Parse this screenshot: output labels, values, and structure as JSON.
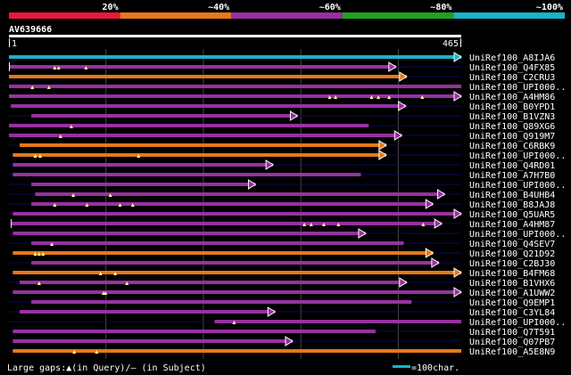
{
  "chart_data": {
    "type": "sequence-alignment-overview",
    "query_id": "AV639666",
    "query_start": "1",
    "query_end": "465",
    "query_length": 465,
    "identity_legend": [
      {
        "label": "20%",
        "color": "#e6193c"
      },
      {
        "label": "~40%",
        "color": "#e67819"
      },
      {
        "label": "~60%",
        "color": "#9632a0"
      },
      {
        "label": "~80%",
        "color": "#23a023"
      },
      {
        "label": "~100%",
        "color": "#19b4c8"
      }
    ],
    "footer_gap_text": "Large gaps:▲(in Query)/– (in Subject)",
    "scale_text": "=100char.",
    "scale_chars": 100,
    "hits": [
      {
        "label": "UniRef100_A8IJA6",
        "color": "#19b4c8",
        "start": 1,
        "end": 465,
        "arrow": true,
        "gaps_q": [],
        "qstart_marker": 0
      },
      {
        "label": "UniRef100_Q4FX85",
        "color": "#9632a0",
        "start": 1,
        "end": 398,
        "arrow": true,
        "gaps_q": [
          48,
          52,
          80
        ],
        "qstart_marker": 1
      },
      {
        "label": "UniRef100_C2CRU3",
        "color": "#e67819",
        "start": 1,
        "end": 409,
        "arrow": true,
        "gaps_q": [],
        "qstart_marker": 0
      },
      {
        "label": "UniRef100_UPI000..",
        "color": "#9632a0",
        "start": 1,
        "end": 465,
        "arrow": false,
        "gaps_q": [
          25,
          42
        ],
        "qstart_marker": 0
      },
      {
        "label": "UniRef100_A4HM86",
        "color": "#9632a0",
        "start": 1,
        "end": 465,
        "arrow": true,
        "gaps_q": [
          330,
          336,
          373,
          380,
          391,
          425
        ],
        "qstart_marker": 0
      },
      {
        "label": "UniRef100_B0YPD1",
        "color": "#9632a0",
        "start": 3,
        "end": 408,
        "arrow": true,
        "gaps_q": [],
        "qstart_marker": 0
      },
      {
        "label": "UniRef100_B1VZN3",
        "color": "#9632a0",
        "start": 24,
        "end": 297,
        "arrow": true,
        "gaps_q": [],
        "qstart_marker": 0
      },
      {
        "label": "UniRef100_Q89XG6",
        "color": "#9632a0",
        "start": 1,
        "end": 370,
        "arrow": false,
        "gaps_q": [
          65
        ],
        "qstart_marker": 0
      },
      {
        "label": "UniRef100_Q919M7",
        "color": "#9632a0",
        "start": 1,
        "end": 404,
        "arrow": true,
        "gaps_q": [
          54
        ],
        "qstart_marker": 0
      },
      {
        "label": "UniRef100_C6RBK9",
        "color": "#e67819",
        "start": 12,
        "end": 388,
        "arrow": true,
        "gaps_q": [],
        "qstart_marker": 0
      },
      {
        "label": "UniRef100_UPI000..",
        "color": "#e67819",
        "start": 5,
        "end": 388,
        "arrow": true,
        "gaps_q": [
          28,
          33,
          134
        ],
        "qstart_marker": 0
      },
      {
        "label": "UniRef100_Q4RD01",
        "color": "#9632a0",
        "start": 5,
        "end": 272,
        "arrow": true,
        "gaps_q": [],
        "qstart_marker": 0
      },
      {
        "label": "UniRef100_A7H7B0",
        "color": "#9632a0",
        "start": 5,
        "end": 362,
        "arrow": false,
        "gaps_q": [],
        "qstart_marker": 0
      },
      {
        "label": "UniRef100_UPI000..",
        "color": "#9632a0",
        "start": 24,
        "end": 254,
        "arrow": true,
        "gaps_q": [],
        "qstart_marker": 0
      },
      {
        "label": "UniRef100_B4UHB4",
        "color": "#9632a0",
        "start": 28,
        "end": 448,
        "arrow": true,
        "gaps_q": [
          67,
          105
        ],
        "qstart_marker": 0
      },
      {
        "label": "UniRef100_B8JAJ8",
        "color": "#9632a0",
        "start": 24,
        "end": 436,
        "arrow": true,
        "gaps_q": [
          48,
          81,
          115,
          128
        ],
        "qstart_marker": 0
      },
      {
        "label": "UniRef100_Q5UAR5",
        "color": "#9632a0",
        "start": 5,
        "end": 465,
        "arrow": true,
        "gaps_q": [],
        "qstart_marker": 0
      },
      {
        "label": "UniRef100_A4HM87",
        "color": "#9632a0",
        "start": 3,
        "end": 445,
        "arrow": true,
        "gaps_q": [
          304,
          311,
          324,
          339,
          426
        ],
        "qstart_marker": 1
      },
      {
        "label": "UniRef100_UPI000..",
        "color": "#9632a0",
        "start": 5,
        "end": 367,
        "arrow": true,
        "gaps_q": [],
        "qstart_marker": 0
      },
      {
        "label": "UniRef100_Q4SEV7",
        "color": "#9632a0",
        "start": 24,
        "end": 406,
        "arrow": false,
        "gaps_q": [
          45
        ],
        "qstart_marker": 0
      },
      {
        "label": "UniRef100_Q21D92",
        "color": "#e67819",
        "start": 5,
        "end": 436,
        "arrow": true,
        "gaps_q": [
          28,
          32,
          36
        ],
        "qstart_marker": 0
      },
      {
        "label": "UniRef100_C2BJ30",
        "color": "#9632a0",
        "start": 24,
        "end": 442,
        "arrow": true,
        "gaps_q": [],
        "qstart_marker": 0
      },
      {
        "label": "UniRef100_B4FM68",
        "color": "#e67819",
        "start": 5,
        "end": 465,
        "arrow": true,
        "gaps_q": [
          95,
          110
        ],
        "qstart_marker": 0
      },
      {
        "label": "UniRef100_B1VHX6",
        "color": "#9632a0",
        "start": 12,
        "end": 409,
        "arrow": true,
        "gaps_q": [
          32,
          122
        ],
        "qstart_marker": 0
      },
      {
        "label": "UniRef100_A1UWW2",
        "color": "#9632a0",
        "start": 5,
        "end": 465,
        "arrow": true,
        "gaps_q": [
          98,
          100
        ],
        "qstart_marker": 0
      },
      {
        "label": "UniRef100_Q9EMP1",
        "color": "#9632a0",
        "start": 24,
        "end": 414,
        "arrow": false,
        "gaps_q": [],
        "qstart_marker": 0
      },
      {
        "label": "UniRef100_C3YL84",
        "color": "#9632a0",
        "start": 12,
        "end": 274,
        "arrow": true,
        "gaps_q": [],
        "qstart_marker": 0
      },
      {
        "label": "UniRef100_UPI000..",
        "color": "#9632a0",
        "start": 212,
        "end": 465,
        "arrow": false,
        "gaps_q": [
          232
        ],
        "qstart_marker": 0
      },
      {
        "label": "UniRef100_Q7T591",
        "color": "#9632a0",
        "start": 5,
        "end": 377,
        "arrow": false,
        "gaps_q": [],
        "qstart_marker": 0
      },
      {
        "label": "UniRef100_Q07PB7",
        "color": "#9632a0",
        "start": 5,
        "end": 292,
        "arrow": true,
        "gaps_q": [],
        "qstart_marker": 0
      },
      {
        "label": "UniRef100_A5E8N9",
        "color": "#e67819",
        "start": 5,
        "end": 465,
        "arrow": false,
        "gaps_q": [
          68,
          91
        ],
        "qstart_marker": 0
      }
    ]
  }
}
